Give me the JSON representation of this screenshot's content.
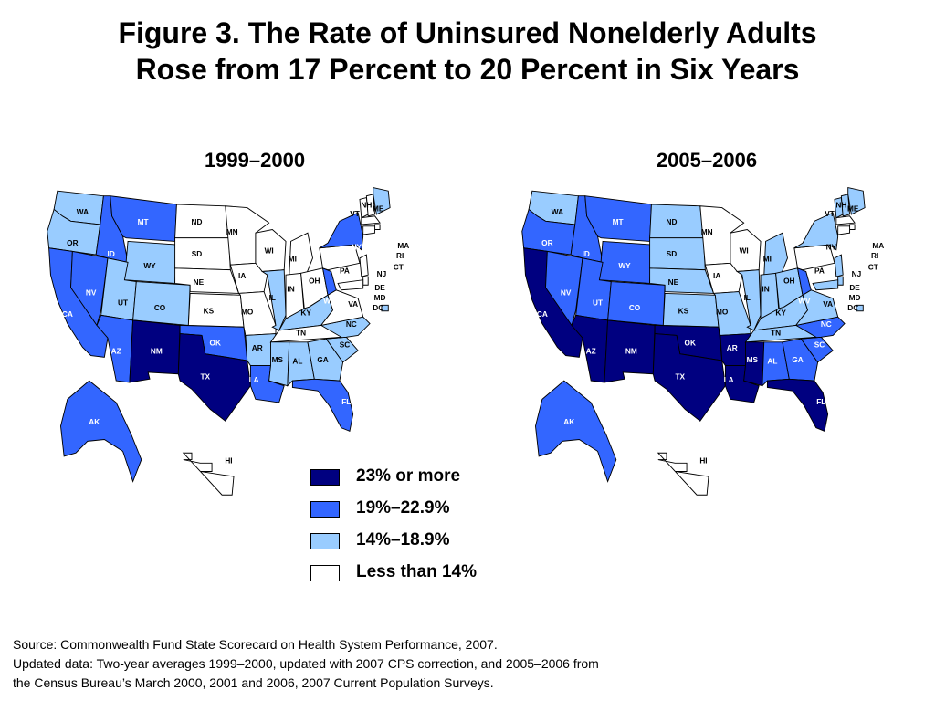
{
  "title_line1": "Figure 3. The Rate of Uninsured Nonelderly Adults",
  "title_line2": "Rose from 17 Percent to 20 Percent in Six Years",
  "colors": {
    "c23": "#000080",
    "c19": "#3366FF",
    "c14": "#99CCFF",
    "lt14": "#FFFFFF"
  },
  "legend": [
    {
      "key": "c23",
      "label": "23% or more"
    },
    {
      "key": "c19",
      "label": "19%–22.9%"
    },
    {
      "key": "c14",
      "label": "14%–18.9%"
    },
    {
      "key": "lt14",
      "label": "Less than 14%"
    }
  ],
  "maps": [
    {
      "title": "1999–2000",
      "states": {
        "WA": "c14",
        "OR": "c14",
        "CA": "c19",
        "NV": "c19",
        "ID": "c19",
        "MT": "c19",
        "WY": "c14",
        "UT": "c14",
        "CO": "c14",
        "AZ": "c19",
        "NM": "c23",
        "TX": "c23",
        "OK": "c19",
        "KS": "lt14",
        "NE": "lt14",
        "SD": "lt14",
        "ND": "lt14",
        "MN": "lt14",
        "IA": "lt14",
        "MO": "lt14",
        "AR": "c14",
        "LA": "c19",
        "WI": "lt14",
        "IL": "c14",
        "MI": "lt14",
        "IN": "lt14",
        "OH": "lt14",
        "KY": "c14",
        "TN": "lt14",
        "MS": "c14",
        "AL": "c14",
        "GA": "c14",
        "FL": "c19",
        "SC": "c14",
        "NC": "c14",
        "VA": "lt14",
        "WV": "c19",
        "PA": "lt14",
        "NY": "c19",
        "VT": "lt14",
        "NH": "lt14",
        "ME": "c14",
        "MA": "lt14",
        "RI": "lt14",
        "CT": "lt14",
        "NJ": "lt14",
        "DE": "lt14",
        "MD": "lt14",
        "DC": "c14",
        "AK": "c19",
        "HI": "lt14"
      }
    },
    {
      "title": "2005–2006",
      "states": {
        "WA": "c14",
        "OR": "c19",
        "CA": "c23",
        "NV": "c19",
        "ID": "c19",
        "MT": "c19",
        "WY": "c19",
        "UT": "c19",
        "CO": "c19",
        "AZ": "c23",
        "NM": "c23",
        "TX": "c23",
        "OK": "c23",
        "KS": "c14",
        "NE": "c14",
        "SD": "c14",
        "ND": "c14",
        "MN": "lt14",
        "IA": "lt14",
        "MO": "c14",
        "AR": "c23",
        "LA": "c23",
        "WI": "lt14",
        "IL": "c14",
        "MI": "c14",
        "IN": "c14",
        "OH": "c14",
        "KY": "c14",
        "TN": "c14",
        "MS": "c23",
        "AL": "c19",
        "GA": "c19",
        "FL": "c23",
        "SC": "c19",
        "NC": "c19",
        "VA": "c14",
        "WV": "c19",
        "PA": "lt14",
        "NY": "c14",
        "VT": "c14",
        "NH": "c14",
        "ME": "c14",
        "MA": "lt14",
        "RI": "lt14",
        "CT": "lt14",
        "NJ": "c14",
        "DE": "c14",
        "MD": "c14",
        "DC": "c14",
        "AK": "c19",
        "HI": "lt14"
      }
    }
  ],
  "source_lines": [
    "Source: Commonwealth Fund State Scorecard on Health System Performance, 2007.",
    "Updated data: Two-year averages 1999–2000, updated with 2007 CPS correction, and 2005–2006 from",
    "the Census Bureau’s March 2000, 2001 and 2006, 2007 Current Population Surveys."
  ]
}
